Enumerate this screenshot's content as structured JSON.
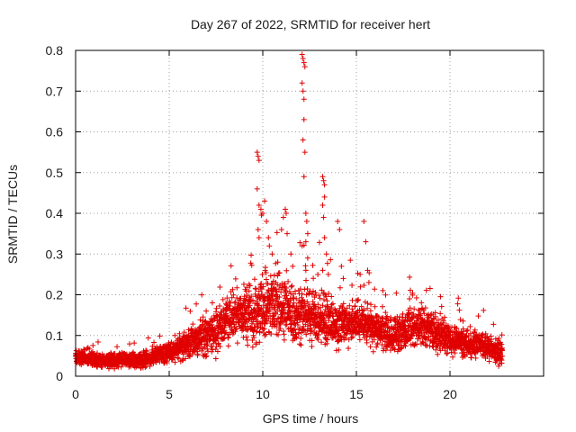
{
  "chart_data": {
    "type": "scatter",
    "title": "Day 267 of 2022, SRMTID for receiver hert",
    "xlabel": "GPS time / hours",
    "ylabel": "SRMTID / TECUs",
    "xlim": [
      0,
      25
    ],
    "ylim": [
      0,
      0.8
    ],
    "xticks": [
      "0",
      "5",
      "10",
      "15",
      "20"
    ],
    "yticks": [
      "0",
      "0.1",
      "0.2",
      "0.3",
      "0.4",
      "0.5",
      "0.6",
      "0.7",
      "0.8"
    ],
    "xtick_values": [
      0,
      5,
      10,
      15,
      20
    ],
    "ytick_values": [
      0,
      0.1,
      0.2,
      0.3,
      0.4,
      0.5,
      0.6,
      0.7,
      0.8
    ],
    "grid": true,
    "marker": "plus",
    "color": "#e00000",
    "series": [
      {
        "name": "hert",
        "baseline": [
          [
            0.0,
            0.05
          ],
          [
            0.5,
            0.045
          ],
          [
            1.0,
            0.04
          ],
          [
            1.5,
            0.038
          ],
          [
            2.0,
            0.04
          ],
          [
            2.5,
            0.042
          ],
          [
            3.0,
            0.04
          ],
          [
            3.5,
            0.038
          ],
          [
            4.0,
            0.045
          ],
          [
            4.5,
            0.055
          ],
          [
            5.0,
            0.06
          ],
          [
            5.5,
            0.07
          ],
          [
            6.0,
            0.08
          ],
          [
            6.5,
            0.09
          ],
          [
            7.0,
            0.1
          ],
          [
            7.5,
            0.11
          ],
          [
            8.0,
            0.13
          ],
          [
            8.5,
            0.15
          ],
          [
            9.0,
            0.15
          ],
          [
            9.5,
            0.14
          ],
          [
            10.0,
            0.17
          ],
          [
            10.5,
            0.18
          ],
          [
            11.0,
            0.17
          ],
          [
            11.5,
            0.16
          ],
          [
            12.0,
            0.15
          ],
          [
            12.5,
            0.15
          ],
          [
            13.0,
            0.14
          ],
          [
            13.5,
            0.14
          ],
          [
            14.0,
            0.12
          ],
          [
            14.5,
            0.13
          ],
          [
            15.0,
            0.13
          ],
          [
            15.5,
            0.13
          ],
          [
            16.0,
            0.12
          ],
          [
            16.5,
            0.11
          ],
          [
            17.0,
            0.1
          ],
          [
            17.5,
            0.11
          ],
          [
            18.0,
            0.12
          ],
          [
            18.5,
            0.12
          ],
          [
            19.0,
            0.11
          ],
          [
            19.5,
            0.1
          ],
          [
            20.0,
            0.09
          ],
          [
            20.5,
            0.09
          ],
          [
            21.0,
            0.08
          ],
          [
            21.5,
            0.08
          ],
          [
            22.0,
            0.07
          ],
          [
            22.5,
            0.06
          ],
          [
            22.8,
            0.06
          ]
        ],
        "spread": [
          [
            0.0,
            0.018
          ],
          [
            4.5,
            0.022
          ],
          [
            7.0,
            0.05
          ],
          [
            9.0,
            0.07
          ],
          [
            10.5,
            0.09
          ],
          [
            12.0,
            0.08
          ],
          [
            14.0,
            0.06
          ],
          [
            16.0,
            0.05
          ],
          [
            19.0,
            0.05
          ],
          [
            22.8,
            0.03
          ]
        ],
        "peaks": [
          [
            9.7,
            0.55
          ],
          [
            9.75,
            0.54
          ],
          [
            9.8,
            0.53
          ],
          [
            9.7,
            0.46
          ],
          [
            9.8,
            0.42
          ],
          [
            9.9,
            0.41
          ],
          [
            9.75,
            0.36
          ],
          [
            9.8,
            0.34
          ],
          [
            10.0,
            0.4
          ],
          [
            10.1,
            0.43
          ],
          [
            10.2,
            0.38
          ],
          [
            10.3,
            0.34
          ],
          [
            10.35,
            0.32
          ],
          [
            10.5,
            0.3
          ],
          [
            10.8,
            0.28
          ],
          [
            11.0,
            0.36
          ],
          [
            11.1,
            0.39
          ],
          [
            11.2,
            0.41
          ],
          [
            11.25,
            0.4
          ],
          [
            11.3,
            0.35
          ],
          [
            11.5,
            0.3
          ],
          [
            11.6,
            0.27
          ],
          [
            12.1,
            0.79
          ],
          [
            12.15,
            0.78
          ],
          [
            12.2,
            0.77
          ],
          [
            12.25,
            0.76
          ],
          [
            12.1,
            0.72
          ],
          [
            12.15,
            0.7
          ],
          [
            12.2,
            0.68
          ],
          [
            12.2,
            0.63
          ],
          [
            12.15,
            0.58
          ],
          [
            12.25,
            0.55
          ],
          [
            12.2,
            0.49
          ],
          [
            12.3,
            0.4
          ],
          [
            12.35,
            0.38
          ],
          [
            12.4,
            0.35
          ],
          [
            12.3,
            0.33
          ],
          [
            12.4,
            0.29
          ],
          [
            12.3,
            0.26
          ],
          [
            12.1,
            0.32
          ],
          [
            13.2,
            0.49
          ],
          [
            13.25,
            0.48
          ],
          [
            13.3,
            0.47
          ],
          [
            13.3,
            0.44
          ],
          [
            13.2,
            0.42
          ],
          [
            13.25,
            0.39
          ],
          [
            13.3,
            0.34
          ],
          [
            13.4,
            0.3
          ],
          [
            13.2,
            0.26
          ],
          [
            13.5,
            0.25
          ],
          [
            14.0,
            0.38
          ],
          [
            14.1,
            0.36
          ],
          [
            14.2,
            0.27
          ],
          [
            14.3,
            0.24
          ],
          [
            15.4,
            0.38
          ],
          [
            15.5,
            0.33
          ],
          [
            15.6,
            0.26
          ],
          [
            15.2,
            0.25
          ]
        ]
      }
    ]
  }
}
